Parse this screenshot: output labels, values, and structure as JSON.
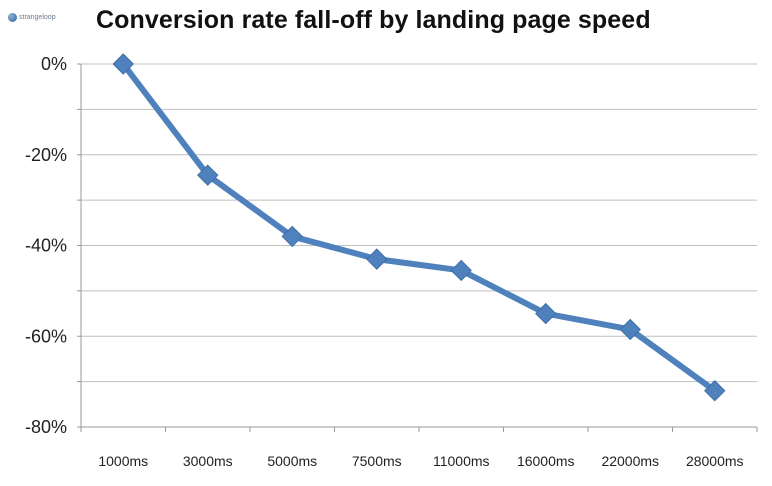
{
  "logo_text": "strangeloop",
  "chart_data": {
    "type": "line",
    "title": "Conversion rate fall-off by landing page speed",
    "categories": [
      "1000ms",
      "3000ms",
      "5000ms",
      "7500ms",
      "11000ms",
      "16000ms",
      "22000ms",
      "28000ms"
    ],
    "series": [
      {
        "values": [
          0,
          -24.5,
          -38,
          -43,
          -45.5,
          -55,
          -58.5,
          -72
        ]
      }
    ],
    "yticks": [
      "0%",
      "-20%",
      "-40%",
      "-60%",
      "-80%"
    ],
    "ylim": [
      -80,
      0
    ],
    "grid": true,
    "line_color": "#4f81bd"
  }
}
